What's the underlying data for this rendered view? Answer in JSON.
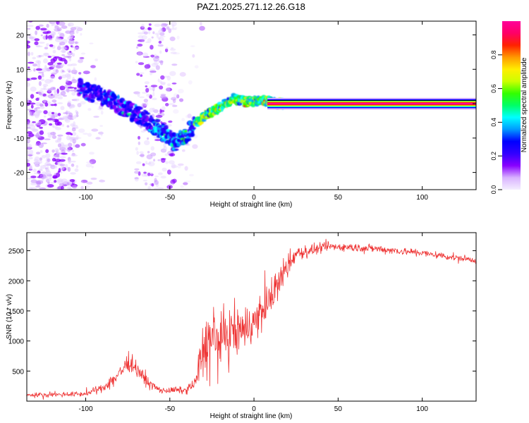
{
  "title": "PAZ1.2025.271.12.26.G18",
  "chart_data": [
    {
      "type": "heatmap",
      "xlabel": "Height of straight line (km)",
      "ylabel": "Frequency (Hz)",
      "xlim": [
        -135,
        132
      ],
      "ylim": [
        -25,
        24
      ],
      "xticks": [
        -100,
        -50,
        0,
        50,
        100
      ],
      "yticks": [
        -20,
        -10,
        0,
        10,
        20
      ],
      "colorbar": {
        "label": "Normalized spectral amplitude",
        "range": [
          0,
          1
        ],
        "ticks": [
          0.0,
          0.2,
          0.4,
          0.6,
          0.8
        ],
        "tick_labels": [
          "0.0",
          "0.2",
          "0.4",
          "0.6",
          "0.8"
        ],
        "colormap": [
          "#f4eeff",
          "#d9b3ff",
          "#8800ff",
          "#3300ff",
          "#0000ff",
          "#0099ff",
          "#00ffff",
          "#00ff66",
          "#33ff00",
          "#ccff00",
          "#ffee00",
          "#ff9900",
          "#ff2200",
          "#ff0066",
          "#ff0099"
        ]
      },
      "ridge": {
        "points": [
          {
            "x": -103,
            "y": 4.5
          },
          {
            "x": -95,
            "y": 3
          },
          {
            "x": -87,
            "y": 1.5
          },
          {
            "x": -80,
            "y": -0.5
          },
          {
            "x": -72,
            "y": -2.5
          },
          {
            "x": -63,
            "y": -5
          },
          {
            "x": -55,
            "y": -8
          },
          {
            "x": -47,
            "y": -11.5
          },
          {
            "x": -42,
            "y": -10
          },
          {
            "x": -35,
            "y": -6
          },
          {
            "x": -28,
            "y": -3
          },
          {
            "x": -20,
            "y": -1
          },
          {
            "x": -12,
            "y": 1.5
          },
          {
            "x": -5,
            "y": 0.5
          },
          {
            "x": 5,
            "y": 1
          },
          {
            "x": 15,
            "y": 0
          },
          {
            "x": 132,
            "y": 0
          }
        ],
        "steady_from_x": 8,
        "steady_frequency": 0
      }
    },
    {
      "type": "line",
      "xlabel": "Height of straight line (km)",
      "ylabel": "SNR (10 * v/v)",
      "xlim": [
        -135,
        132
      ],
      "ylim": [
        0,
        2800
      ],
      "xticks": [
        -100,
        -50,
        0,
        50,
        100
      ],
      "yticks": [
        500,
        1000,
        1500,
        2000,
        2500
      ],
      "color": "#ee3333",
      "x_step": 0.25,
      "envelope": [
        {
          "x": -135,
          "mean": 100,
          "noise": 55
        },
        {
          "x": -100,
          "mean": 120,
          "noise": 65
        },
        {
          "x": -90,
          "mean": 220,
          "noise": 100
        },
        {
          "x": -80,
          "mean": 450,
          "noise": 220
        },
        {
          "x": -75,
          "mean": 650,
          "noise": 220
        },
        {
          "x": -70,
          "mean": 560,
          "noise": 190
        },
        {
          "x": -63,
          "mean": 300,
          "noise": 130
        },
        {
          "x": -55,
          "mean": 170,
          "noise": 80
        },
        {
          "x": -40,
          "mean": 190,
          "noise": 80
        },
        {
          "x": -35,
          "mean": 300,
          "noise": 160
        },
        {
          "x": -31,
          "mean": 800,
          "noise": 650
        },
        {
          "x": -28,
          "mean": 1000,
          "noise": 900
        },
        {
          "x": -20,
          "mean": 1050,
          "noise": 700
        },
        {
          "x": -10,
          "mean": 1150,
          "noise": 650
        },
        {
          "x": 0,
          "mean": 1300,
          "noise": 550
        },
        {
          "x": 10,
          "mean": 1700,
          "noise": 450
        },
        {
          "x": 18,
          "mean": 2150,
          "noise": 350
        },
        {
          "x": 25,
          "mean": 2450,
          "noise": 180
        },
        {
          "x": 45,
          "mean": 2570,
          "noise": 110
        },
        {
          "x": 70,
          "mean": 2540,
          "noise": 100
        },
        {
          "x": 100,
          "mean": 2460,
          "noise": 90
        },
        {
          "x": 132,
          "mean": 2340,
          "noise": 80
        }
      ]
    }
  ]
}
